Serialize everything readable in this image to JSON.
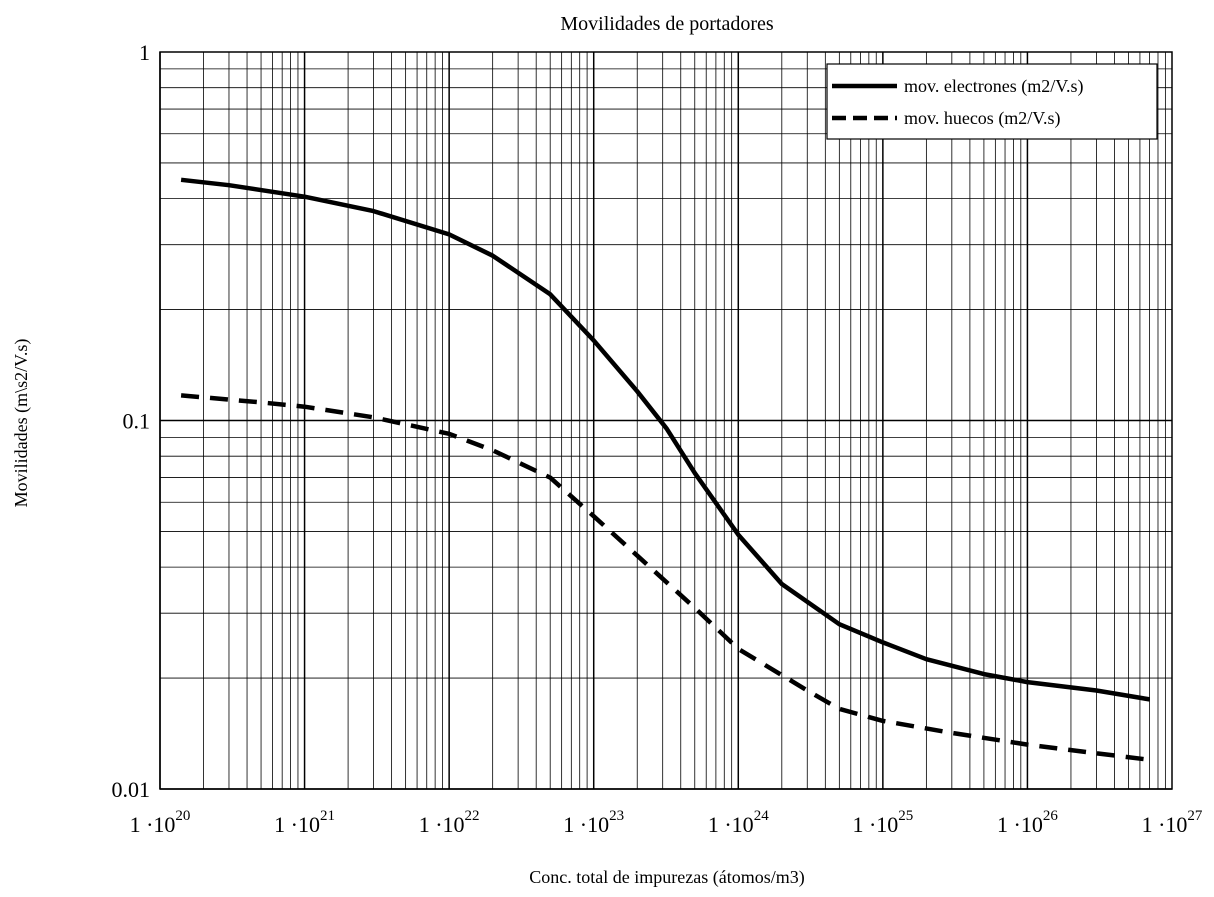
{
  "chart_data": {
    "type": "line",
    "title": "Movilidades de portadores",
    "xlabel": "Conc. total de impurezas (átomos/m3)",
    "ylabel": "Movilidades (m\\s2/V.s)",
    "x_scale": "log",
    "y_scale": "log",
    "xlim": [
      1e+20,
      1e+27
    ],
    "ylim": [
      0.01,
      1
    ],
    "grid": true,
    "legend_position": "top-right",
    "x_ticks": [
      {
        "value": 1e+20,
        "base": "1 ·10",
        "exp": "20"
      },
      {
        "value": 1e+21,
        "base": "1 ·10",
        "exp": "21"
      },
      {
        "value": 1e+22,
        "base": "1 ·10",
        "exp": "22"
      },
      {
        "value": 1e+23,
        "base": "1 ·10",
        "exp": "23"
      },
      {
        "value": 1e+24,
        "base": "1 ·10",
        "exp": "24"
      },
      {
        "value": 1e+25,
        "base": "1 ·10",
        "exp": "25"
      },
      {
        "value": 1e+26,
        "base": "1 ·10",
        "exp": "26"
      },
      {
        "value": 1e+27,
        "base": "1 ·10",
        "exp": "27"
      }
    ],
    "y_ticks": [
      {
        "value": 1,
        "label": "1"
      },
      {
        "value": 0.1,
        "label": "0.1"
      },
      {
        "value": 0.01,
        "label": "0.01"
      }
    ],
    "series": [
      {
        "name": "mov. electrones (m2/V.s)",
        "style": "solid",
        "color": "#000000",
        "x": [
          1.4e+20,
          3e+20,
          1e+21,
          3e+21,
          1e+22,
          2e+22,
          5e+22,
          1e+23,
          2e+23,
          3.2e+23,
          5e+23,
          1e+24,
          2e+24,
          5e+24,
          1e+25,
          2e+25,
          5e+25,
          1e+26,
          3e+26,
          7e+26
        ],
        "y": [
          0.45,
          0.435,
          0.405,
          0.37,
          0.32,
          0.28,
          0.22,
          0.165,
          0.12,
          0.095,
          0.072,
          0.049,
          0.036,
          0.028,
          0.025,
          0.0225,
          0.0205,
          0.0195,
          0.0185,
          0.0175
        ]
      },
      {
        "name": "mov. huecos (m2/V.s)",
        "style": "dashed",
        "color": "#000000",
        "x": [
          1.4e+20,
          5e+20,
          1e+21,
          3e+21,
          1e+22,
          2e+22,
          5e+22,
          1e+23,
          2e+23,
          5e+23,
          1e+24,
          3e+24,
          5e+24,
          1e+25,
          3e+25,
          1e+26,
          3e+26,
          7e+26
        ],
        "y": [
          0.117,
          0.112,
          0.109,
          0.102,
          0.092,
          0.083,
          0.07,
          0.055,
          0.043,
          0.031,
          0.024,
          0.0185,
          0.0165,
          0.0153,
          0.0142,
          0.0132,
          0.0125,
          0.012
        ]
      }
    ]
  }
}
